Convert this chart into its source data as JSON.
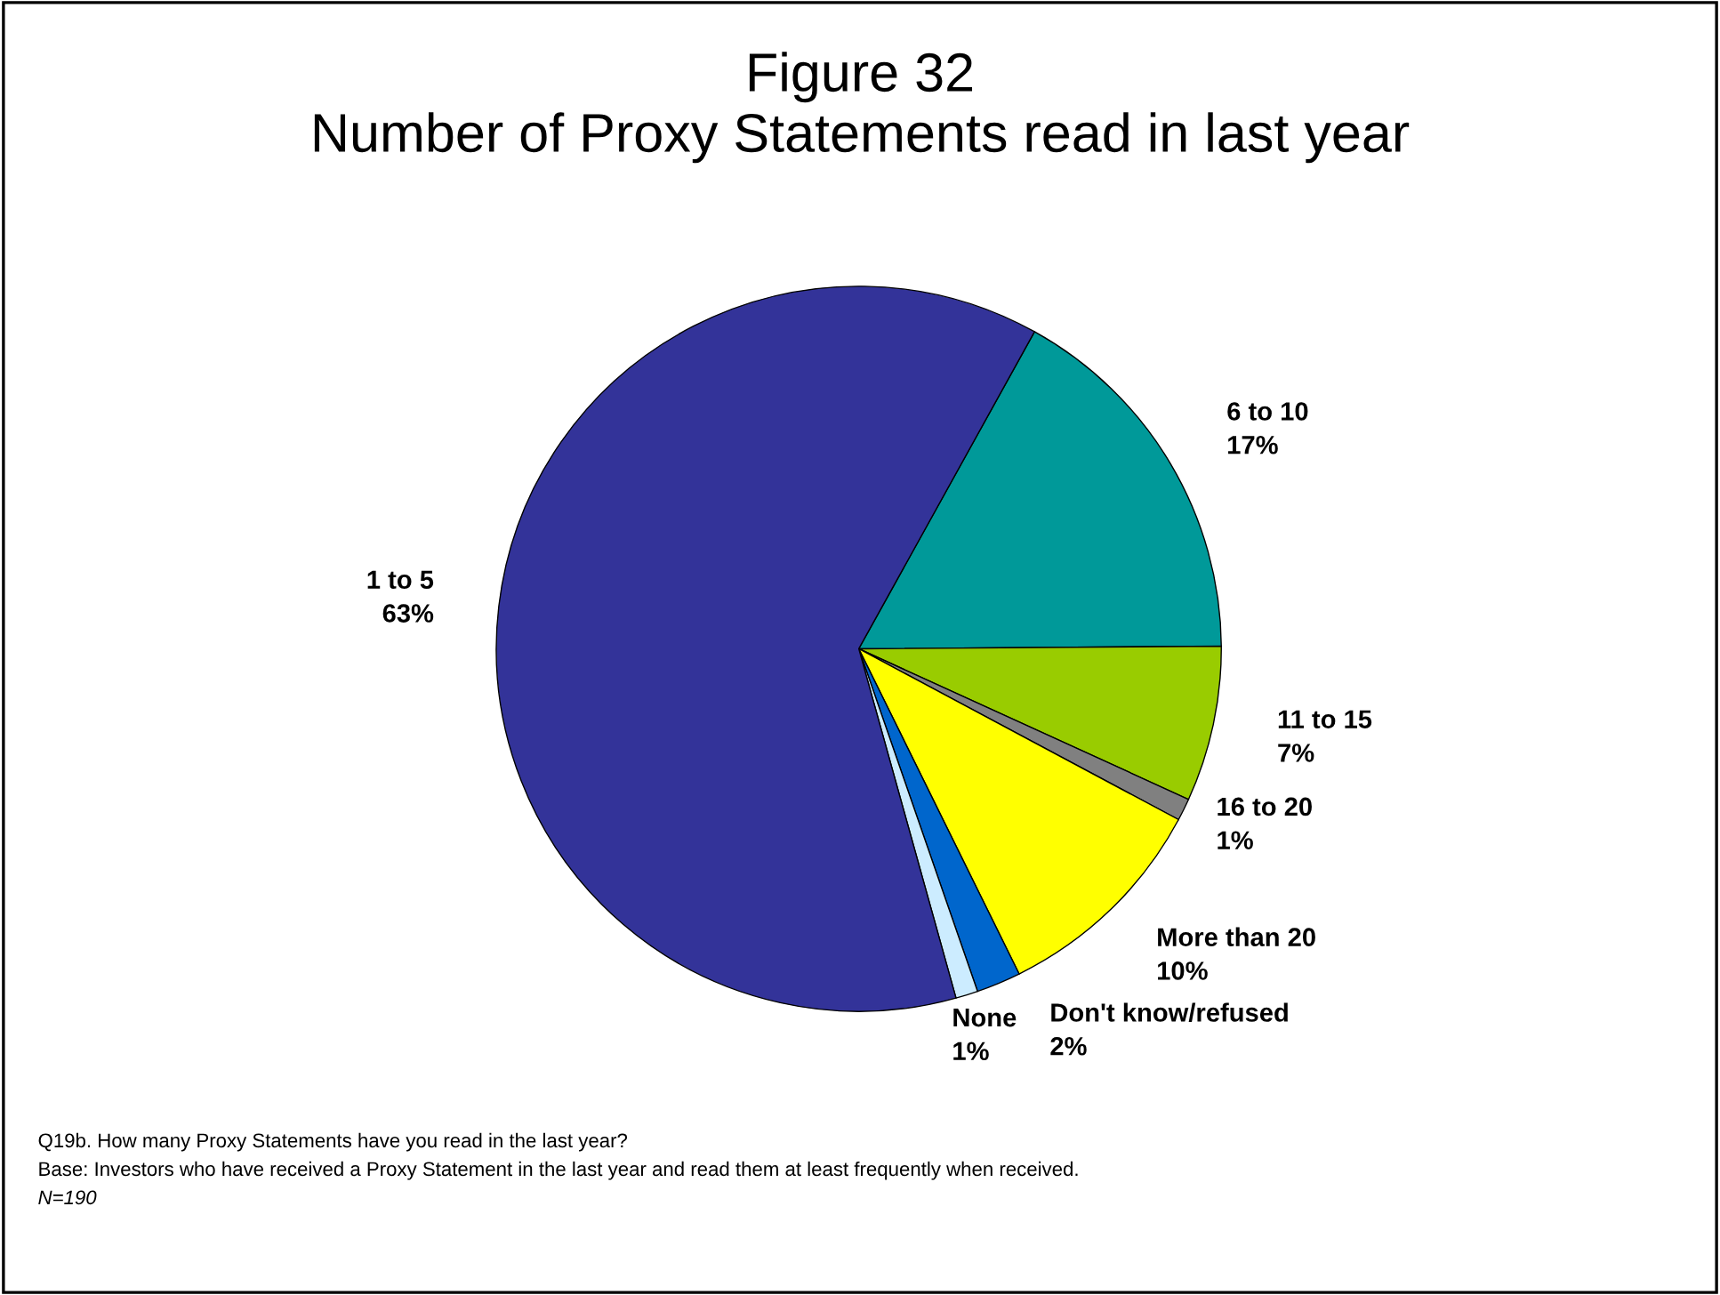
{
  "chart_data": {
    "type": "pie",
    "title": "Figure 32\nNumber of Proxy Statements read in last year",
    "categories": [
      "6 to 10",
      "11 to 15",
      "16 to 20",
      "More than 20",
      "Don't know/refused",
      "None",
      "1 to 5"
    ],
    "values": [
      17,
      7,
      1,
      10,
      2,
      1,
      63
    ],
    "value_labels": [
      "17%",
      "7%",
      "1%",
      "10%",
      "2%",
      "1%",
      "63%"
    ],
    "colors": [
      "#009999",
      "#99cc00",
      "#808080",
      "#ffff00",
      "#0066cc",
      "#ccecff",
      "#333399"
    ],
    "legend": false,
    "annotations": [
      "Q19b. How many Proxy Statements have you read in the last year?",
      "Base: Investors who have received a Proxy Statement in the last year and read them at least frequently when received.",
      "N=190"
    ]
  }
}
